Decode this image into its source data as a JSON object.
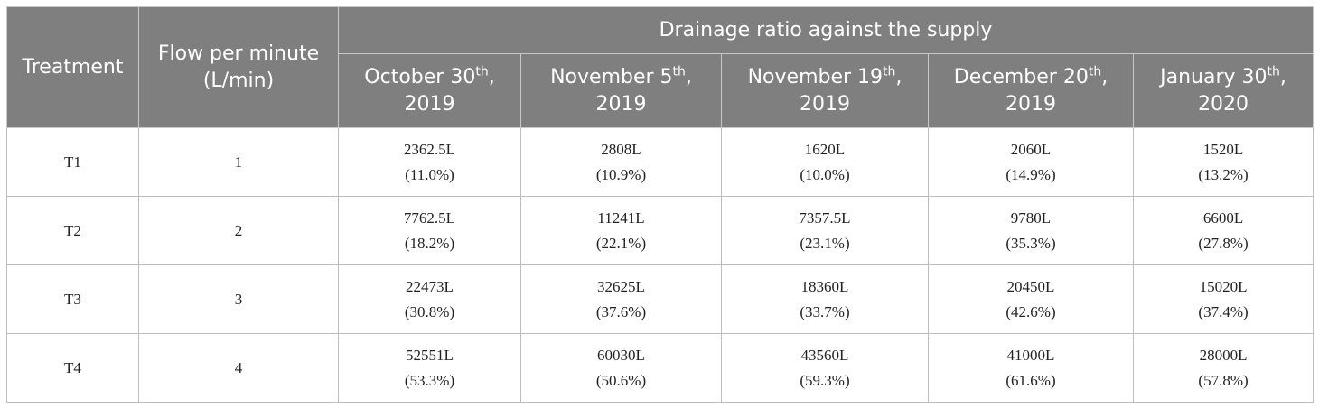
{
  "table": {
    "headers": {
      "treatment": "Treatment",
      "flow": "Flow per minute (L/min)",
      "group": "Drainage ratio against the supply",
      "dates": [
        {
          "month": "October 30",
          "suffix": "th",
          "year": ", 2019"
        },
        {
          "month": "November 5",
          "suffix": "th",
          "year": ", 2019"
        },
        {
          "month": "November 19",
          "suffix": "th",
          "year": ", 2019"
        },
        {
          "month": "December 20",
          "suffix": "th",
          "year": ", 2019"
        },
        {
          "month": "January 30",
          "suffix": "th",
          "year": ", 2020"
        }
      ]
    },
    "rows": [
      {
        "treatment": "T1",
        "flow": "1",
        "cells": [
          {
            "value": "2362.5L",
            "pct": "(11.0%)"
          },
          {
            "value": "2808L",
            "pct": "(10.9%)"
          },
          {
            "value": "1620L",
            "pct": "(10.0%)"
          },
          {
            "value": "2060L",
            "pct": "(14.9%)"
          },
          {
            "value": "1520L",
            "pct": "(13.2%)"
          }
        ]
      },
      {
        "treatment": "T2",
        "flow": "2",
        "cells": [
          {
            "value": "7762.5L",
            "pct": "(18.2%)"
          },
          {
            "value": "11241L",
            "pct": "(22.1%)"
          },
          {
            "value": "7357.5L",
            "pct": "(23.1%)"
          },
          {
            "value": "9780L",
            "pct": "(35.3%)"
          },
          {
            "value": "6600L",
            "pct": "(27.8%)"
          }
        ]
      },
      {
        "treatment": "T3",
        "flow": "3",
        "cells": [
          {
            "value": "22473L",
            "pct": "(30.8%)"
          },
          {
            "value": "32625L",
            "pct": "(37.6%)"
          },
          {
            "value": "18360L",
            "pct": "(33.7%)"
          },
          {
            "value": "20450L",
            "pct": "(42.6%)"
          },
          {
            "value": "15020L",
            "pct": "(37.4%)"
          }
        ]
      },
      {
        "treatment": "T4",
        "flow": "4",
        "cells": [
          {
            "value": "52551L",
            "pct": "(53.3%)"
          },
          {
            "value": "60030L",
            "pct": "(50.6%)"
          },
          {
            "value": "43560L",
            "pct": "(59.3%)"
          },
          {
            "value": "41000L",
            "pct": "(61.6%)"
          },
          {
            "value": "28000L",
            "pct": "(57.8%)"
          }
        ]
      }
    ],
    "colors": {
      "header_bg": "#7f7f7f",
      "header_text": "#ffffff",
      "border": "#bdbdbd"
    }
  }
}
